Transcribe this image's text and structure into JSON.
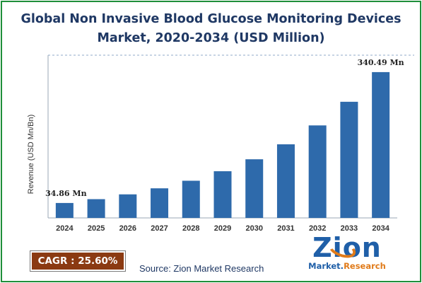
{
  "title_lines": [
    "Global Non Invasive Blood Glucose Monitoring Devices",
    "Market, 2020-2034 (USD Million)"
  ],
  "colors": {
    "bar": "#2e6aab",
    "title": "#1f3864",
    "border": "#1f8f3a",
    "cagr_bg": "#8b3a12",
    "logo_blue": "#1f5fa8",
    "logo_orange": "#e07b1a"
  },
  "cagr": {
    "label": "CAGR : ",
    "value": "25.60%"
  },
  "source": "Source: Zion Market Research",
  "logo": {
    "word": "Zion",
    "sub_left": "Market.",
    "sub_right": "Research"
  },
  "chart_data": {
    "type": "bar",
    "title": "Global Non Invasive Blood Glucose Monitoring Devices Market, 2020-2034 (USD Million)",
    "ylabel": "Revenue (USD Mn/Bn)",
    "xlabel": "",
    "categories": [
      "2024",
      "2025",
      "2026",
      "2027",
      "2028",
      "2029",
      "2030",
      "2031",
      "2032",
      "2033",
      "2034"
    ],
    "values": [
      34.86,
      43.8,
      55.0,
      69.1,
      86.8,
      109.0,
      136.9,
      171.9,
      216.0,
      271.2,
      340.49
    ],
    "data_labels": {
      "0": "34.86 Mn",
      "10": "340.49 Mn"
    },
    "ylim": [
      0,
      380
    ],
    "grid": "horizontal dashed line at top",
    "legend": "none"
  }
}
